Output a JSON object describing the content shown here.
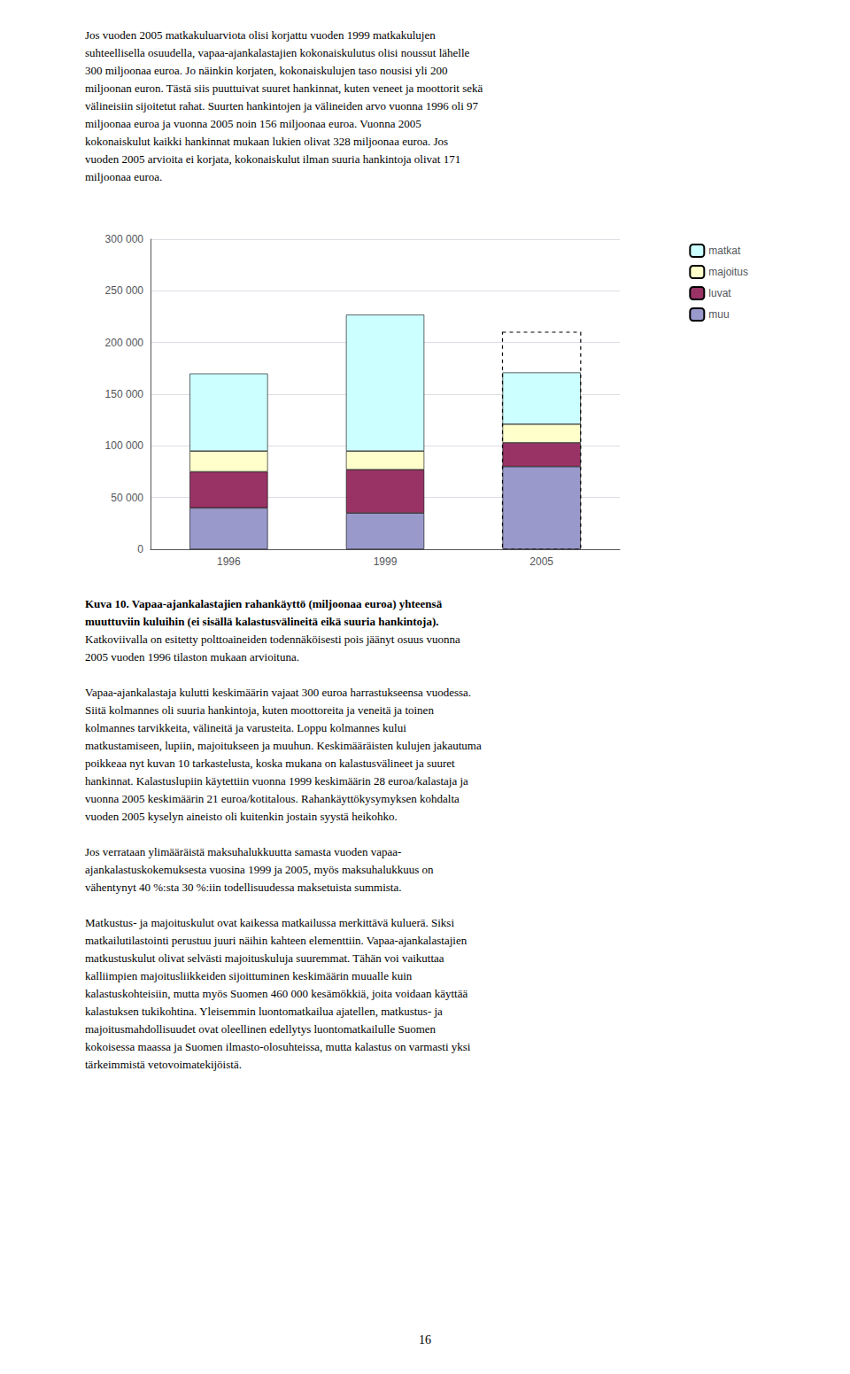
{
  "chart_data": {
    "type": "bar",
    "stacked": true,
    "categories": [
      "1996",
      "1999",
      "2005"
    ],
    "series": [
      {
        "name": "muu",
        "color": "#9999cc",
        "values": [
          40000,
          35000,
          80000
        ]
      },
      {
        "name": "luvat",
        "color": "#993366",
        "values": [
          35000,
          42000,
          23000
        ]
      },
      {
        "name": "majoitus",
        "color": "#ffffcc",
        "values": [
          20000,
          18000,
          18000
        ]
      },
      {
        "name": "matkat",
        "color": "#ccffff",
        "values": [
          75000,
          132000,
          50000
        ]
      }
    ],
    "dashed_box": {
      "category": "2005",
      "value": 210000
    },
    "ylim": [
      0,
      300000
    ],
    "yticks": [
      {
        "value": 0,
        "label": "0"
      },
      {
        "value": 50000,
        "label": "50 000"
      },
      {
        "value": 100000,
        "label": "100 000"
      },
      {
        "value": 150000,
        "label": "150 000"
      },
      {
        "value": 200000,
        "label": "200 000"
      },
      {
        "value": 250000,
        "label": "250 000"
      },
      {
        "value": 300000,
        "label": "300 000"
      }
    ],
    "grid": true,
    "legend": "upper right"
  },
  "text_above": [
    "Jos vuoden 2005 matkakuluarviota olisi korjattu vuoden 1999 matkakulujen",
    "suhteellisella osuudella, vapaa-ajankalastajien kokonaiskulutus olisi noussut lähelle",
    "300 miljoonaa euroa. Jo näinkin korjaten, kokonaiskulujen taso nousisi yli 200",
    "miljoonan euron. Tästä siis puuttuivat suuret hankinnat, kuten veneet ja moottorit sekä",
    "välineisiin sijoitetut rahat. Suurten hankintojen ja välineiden arvo vuonna 1996 oli 97",
    "miljoonaa euroa ja vuonna 2005 noin 156 miljoonaa euroa. Vuonna 2005",
    "kokonaiskulut kaikki hankinnat mukaan lukien olivat 328 miljoonaa euroa. Jos",
    "vuoden 2005 arvioita ei korjata, kokonaiskulut ilman suuria hankintoja olivat 171",
    "miljoonaa euroa."
  ],
  "caption": [
    "Kuva 10. Vapaa-ajankalastajien rahankäyttö (miljoonaa euroa) yhteensä",
    "muuttuviin kuluihin (ei sisällä kalastusvälineitä eikä suuria hankintoja)."
  ],
  "caption_note": [
    "Katkoviivalla on esitetty polttoaineiden todennäköisesti pois jäänyt osuus vuonna",
    "2005 vuoden 1996 tilaston mukaan arvioituna."
  ],
  "text_below": [
    [
      "Vapaa-ajankalastaja kulutti keskimäärin vajaat 300 euroa harrastukseensa vuodessa.",
      "Siitä kolmannes oli suuria hankintoja, kuten moottoreita ja veneitä ja toinen",
      "kolmannes tarvikkeita, välineitä ja varusteita. Loppu kolmannes kului",
      "matkustamiseen, lupiin, majoitukseen ja muuhun. Keskimääräisten kulujen jakautuma",
      "poikkeaa nyt kuvan 10 tarkastelusta, koska mukana on kalastusvälineet ja suuret",
      "hankinnat. Kalastuslupiin käytettiin vuonna 1999 keskimäärin 28 euroa/kalastaja ja",
      "vuonna 2005 keskimäärin 21 euroa/kotitalous. Rahankäyttökysymyksen kohdalta",
      "vuoden 2005 kyselyn aineisto oli kuitenkin jostain syystä heikohko."
    ],
    [
      "Jos verrataan ylimääräistä maksuhalukkuutta samasta vuoden vapaa-",
      "ajankalastuskokemuksesta vuosina 1999 ja 2005, myös maksuhalukkuus on",
      "vähentynyt 40 %:sta 30 %:iin todellisuudessa maksetuista summista."
    ],
    [
      "Matkustus- ja majoituskulut ovat kaikessa matkailussa merkittävä kuluerä. Siksi",
      "matkailutilastointi perustuu juuri näihin kahteen elementtiin. Vapaa-ajankalastajien",
      "matkustuskulut olivat selvästi majoituskuluja suuremmat. Tähän voi vaikuttaa",
      "kalliimpien majoitusliikkeiden sijoittuminen keskimäärin muualle kuin",
      "kalastuskohteisiin, mutta myös Suomen 460 000 kesämökkiä, joita voidaan käyttää",
      "kalastuksen tukikohtina. Yleisemmin luontomatkailua ajatellen, matkustus- ja",
      "majoitusmahdollisuudet ovat oleellinen edellytys luontomatkailulle Suomen",
      "kokoisessa maassa ja Suomen ilmasto-olosuhteissa, mutta kalastus on varmasti yksi",
      "tärkeimmistä vetovoimatekijöistä."
    ]
  ],
  "page_number": "16"
}
